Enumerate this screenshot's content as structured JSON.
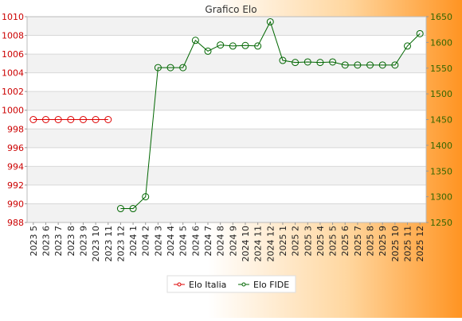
{
  "chart_data": {
    "type": "line",
    "title": "Grafico Elo",
    "categories": [
      "2023 5",
      "2023 6",
      "2023 7",
      "2023 8",
      "2023 9",
      "2023 10",
      "2023 11",
      "2023 12",
      "2024 1",
      "2024 2",
      "2024 3",
      "2024 4",
      "2024 5",
      "2024 6",
      "2024 7",
      "2024 8",
      "2024 9",
      "2024 10",
      "2024 11",
      "2024 12",
      "2025 1",
      "2025 2",
      "2025 3",
      "2025 4",
      "2025 5",
      "2025 6",
      "2025 7",
      "2025 8",
      "2025 9",
      "2025 10",
      "2025 11",
      "2025 12"
    ],
    "y_left": {
      "range": [
        988,
        1010
      ],
      "ticks": [
        988,
        990,
        992,
        994,
        996,
        998,
        1000,
        1002,
        1004,
        1006,
        1008,
        1010
      ]
    },
    "y_right": {
      "range": [
        1250,
        1650
      ],
      "ticks": [
        1250,
        1300,
        1350,
        1400,
        1450,
        1500,
        1550,
        1600,
        1650
      ]
    },
    "series": [
      {
        "name": "Elo Italia",
        "axis": "left",
        "color": "#dd0000",
        "values": [
          999,
          999,
          999,
          999,
          999,
          999,
          999,
          null,
          null,
          null,
          null,
          null,
          null,
          null,
          null,
          null,
          null,
          null,
          null,
          null,
          null,
          null,
          null,
          null,
          null,
          null,
          null,
          null,
          null,
          null,
          null,
          null
        ]
      },
      {
        "name": "Elo FIDE",
        "axis": "right",
        "color": "#006600",
        "values": [
          null,
          null,
          null,
          null,
          null,
          null,
          null,
          1277,
          1277,
          1300,
          1551,
          1551,
          1551,
          1604,
          1583,
          1595,
          1593,
          1594,
          1593,
          1640,
          1565,
          1561,
          1562,
          1561,
          1562,
          1556,
          1556,
          1556,
          1556,
          1556,
          1593,
          1617
        ]
      }
    ],
    "grid": true,
    "legend_position": "bottom"
  },
  "colors": {
    "left_axis": "#cc0000",
    "right_axis": "#336600",
    "grid_band": "#f2f2f2",
    "grid_line": "#d8d8d8",
    "background_orange": "#ff9900"
  }
}
